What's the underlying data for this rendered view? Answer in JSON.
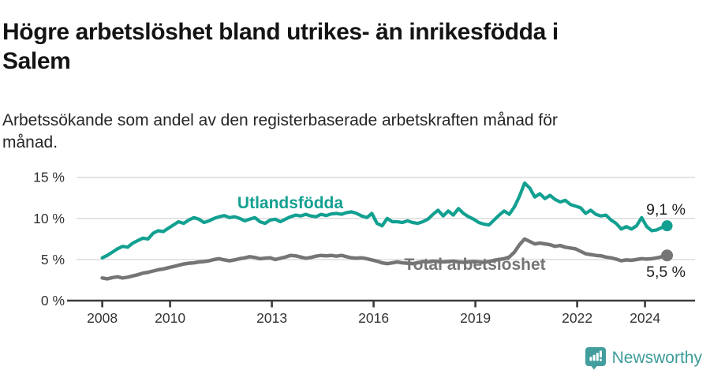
{
  "header": {
    "title_lines": [
      "Högre arbetslöshet bland utrikes- än inrikesfödda i",
      "Salem"
    ],
    "subtitle_lines": [
      "Arbetssökande som andel av den registerbaserade arbetskraften månad för",
      "månad."
    ]
  },
  "footer": {
    "brand": "Newsworthy",
    "logo_icon": "speech-bubble-bar-chart-icon"
  },
  "colors": {
    "series_foreign_born": "#12a091",
    "series_total": "#757575",
    "axis": "#3b3b3b",
    "gridline": "#d9d9d9",
    "tick_text": "#333333",
    "end_label_text": "#1f1f1f",
    "logo_teal": "#429e9d",
    "background": "#ffffff"
  },
  "chart_data": {
    "type": "line",
    "title": "Högre arbetslöshet bland utrikes- än inrikesfödda i Salem",
    "subtitle": "Arbetssökande som andel av den registerbaserade arbetskraften månad för månad.",
    "xlabel": "",
    "ylabel": "%",
    "grid": "horizontal",
    "legend_position": "inline-labels",
    "x_unit": "year (monthly observations)",
    "x_start_year": 2008.0,
    "x_step_years": 0.15,
    "xlim": [
      2007.0,
      2025.4
    ],
    "ylim": [
      0,
      15.5
    ],
    "x_tick_years": [
      2008,
      2010,
      2013,
      2016,
      2019,
      2022,
      2024
    ],
    "y_tick_values": [
      0,
      5,
      10,
      15
    ],
    "y_tick_labels": [
      "0 %",
      "5 %",
      "10 %",
      "15 %"
    ],
    "series": [
      {
        "name": "Utlandsfödda",
        "color": "#12a091",
        "end_label": "9,1 %",
        "last_value": 9.1,
        "values": [
          5.2,
          5.5,
          5.9,
          6.3,
          6.6,
          6.5,
          7.0,
          7.3,
          7.6,
          7.5,
          8.2,
          8.5,
          8.4,
          8.8,
          9.2,
          9.6,
          9.4,
          9.8,
          10.1,
          9.9,
          9.5,
          9.7,
          10.0,
          10.2,
          10.35,
          10.1,
          10.2,
          10.0,
          9.7,
          9.9,
          10.1,
          9.6,
          9.4,
          9.8,
          9.9,
          9.6,
          9.9,
          10.2,
          10.4,
          10.3,
          10.5,
          10.3,
          10.2,
          10.5,
          10.35,
          10.55,
          10.6,
          10.5,
          10.7,
          10.8,
          10.6,
          10.3,
          10.1,
          10.6,
          9.4,
          9.1,
          10.0,
          9.6,
          9.6,
          9.5,
          9.7,
          9.5,
          9.4,
          9.6,
          9.9,
          10.5,
          11.0,
          10.3,
          10.9,
          10.4,
          11.2,
          10.6,
          10.2,
          9.9,
          9.5,
          9.3,
          9.2,
          9.8,
          10.4,
          10.9,
          10.5,
          11.4,
          12.7,
          14.3,
          13.7,
          12.6,
          13.0,
          12.4,
          12.8,
          12.3,
          12.0,
          12.2,
          11.7,
          11.5,
          11.3,
          10.6,
          11.0,
          10.5,
          10.3,
          10.4,
          9.8,
          9.4,
          8.7,
          9.0,
          8.7,
          9.1,
          10.1,
          9.0,
          8.5,
          8.6,
          8.9,
          9.1
        ]
      },
      {
        "name": "Total arbetslöshet",
        "color": "#757575",
        "end_label": "5,5 %",
        "last_value": 5.5,
        "values": [
          2.75,
          2.65,
          2.8,
          2.9,
          2.75,
          2.85,
          3.0,
          3.15,
          3.35,
          3.45,
          3.6,
          3.75,
          3.85,
          4.0,
          4.15,
          4.3,
          4.45,
          4.55,
          4.6,
          4.7,
          4.75,
          4.85,
          5.0,
          5.1,
          4.95,
          4.85,
          4.95,
          5.1,
          5.2,
          5.35,
          5.25,
          5.1,
          5.15,
          5.2,
          5.0,
          5.15,
          5.3,
          5.5,
          5.45,
          5.3,
          5.15,
          5.25,
          5.4,
          5.5,
          5.45,
          5.5,
          5.4,
          5.5,
          5.35,
          5.2,
          5.15,
          5.2,
          5.1,
          4.95,
          4.8,
          4.6,
          4.5,
          4.6,
          4.7,
          4.6,
          4.55,
          4.5,
          4.6,
          4.75,
          4.7,
          4.8,
          4.75,
          4.7,
          4.75,
          4.8,
          4.7,
          4.65,
          4.7,
          4.75,
          4.7,
          4.65,
          4.75,
          4.9,
          5.0,
          5.1,
          5.3,
          5.9,
          6.8,
          7.5,
          7.2,
          6.9,
          7.0,
          6.9,
          6.8,
          6.6,
          6.7,
          6.5,
          6.4,
          6.3,
          6.0,
          5.7,
          5.6,
          5.5,
          5.45,
          5.3,
          5.2,
          5.05,
          4.85,
          4.95,
          4.9,
          5.0,
          5.1,
          5.05,
          5.1,
          5.2,
          5.35,
          5.5
        ]
      }
    ]
  }
}
